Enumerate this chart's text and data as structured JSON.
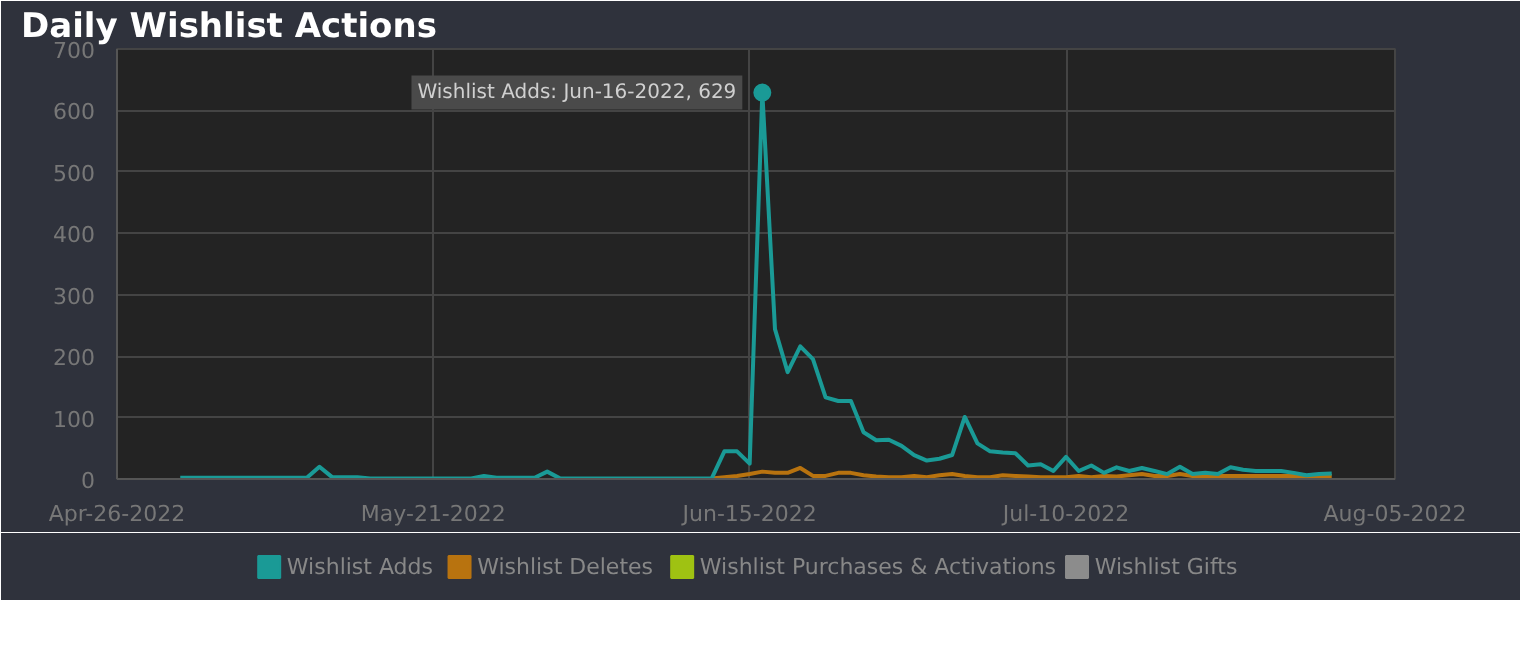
{
  "chart_data": {
    "type": "line",
    "title": "Daily Wishlist Actions",
    "x": [
      "2022-05-01",
      "2022-05-02",
      "2022-05-03",
      "2022-05-04",
      "2022-05-05",
      "2022-05-06",
      "2022-05-07",
      "2022-05-08",
      "2022-05-09",
      "2022-05-10",
      "2022-05-11",
      "2022-05-12",
      "2022-05-13",
      "2022-05-14",
      "2022-05-15",
      "2022-05-16",
      "2022-05-17",
      "2022-05-18",
      "2022-05-19",
      "2022-05-20",
      "2022-05-21",
      "2022-05-22",
      "2022-05-23",
      "2022-05-24",
      "2022-05-25",
      "2022-05-26",
      "2022-05-27",
      "2022-05-28",
      "2022-05-29",
      "2022-05-30",
      "2022-05-31",
      "2022-06-01",
      "2022-06-02",
      "2022-06-03",
      "2022-06-04",
      "2022-06-05",
      "2022-06-06",
      "2022-06-07",
      "2022-06-08",
      "2022-06-09",
      "2022-06-10",
      "2022-06-11",
      "2022-06-12",
      "2022-06-13",
      "2022-06-14",
      "2022-06-15",
      "2022-06-16",
      "2022-06-17",
      "2022-06-18",
      "2022-06-19",
      "2022-06-20",
      "2022-06-21",
      "2022-06-22",
      "2022-06-23",
      "2022-06-24",
      "2022-06-25",
      "2022-06-26",
      "2022-06-27",
      "2022-06-28",
      "2022-06-29",
      "2022-06-30",
      "2022-07-01",
      "2022-07-02",
      "2022-07-03",
      "2022-07-04",
      "2022-07-05",
      "2022-07-06",
      "2022-07-07",
      "2022-07-08",
      "2022-07-09",
      "2022-07-10",
      "2022-07-11",
      "2022-07-12",
      "2022-07-13",
      "2022-07-14",
      "2022-07-15",
      "2022-07-16",
      "2022-07-17",
      "2022-07-18",
      "2022-07-19",
      "2022-07-20",
      "2022-07-21",
      "2022-07-22",
      "2022-07-23",
      "2022-07-24",
      "2022-07-25",
      "2022-07-26",
      "2022-07-27",
      "2022-07-28",
      "2022-07-29",
      "2022-07-30",
      "2022-07-31"
    ],
    "series": [
      {
        "name": "Wishlist Adds",
        "color": "#1a9a96",
        "values": [
          2,
          2,
          2,
          2,
          2,
          2,
          2,
          2,
          2,
          2,
          2,
          20,
          3,
          3,
          3,
          1,
          1,
          1,
          1,
          1,
          1,
          1,
          1,
          1,
          5,
          2,
          2,
          2,
          2,
          12,
          1,
          1,
          1,
          1,
          1,
          1,
          1,
          1,
          1,
          1,
          1,
          1,
          1,
          45,
          45,
          25,
          629,
          244,
          174,
          216,
          195,
          133,
          127,
          127,
          76,
          63,
          64,
          54,
          39,
          30,
          33,
          39,
          101,
          58,
          45,
          43,
          42,
          22,
          24,
          13,
          36,
          13,
          22,
          10,
          19,
          13,
          18,
          13,
          8,
          20,
          8,
          10,
          8,
          19,
          15,
          13,
          13,
          13,
          10,
          6,
          8,
          9
        ]
      },
      {
        "name": "Wishlist Deletes",
        "color": "#b8730f",
        "values": [
          null,
          null,
          null,
          null,
          null,
          null,
          null,
          null,
          null,
          null,
          null,
          null,
          null,
          null,
          null,
          null,
          null,
          null,
          null,
          null,
          null,
          null,
          null,
          null,
          null,
          null,
          null,
          null,
          null,
          null,
          null,
          null,
          null,
          null,
          null,
          null,
          null,
          null,
          null,
          null,
          null,
          null,
          1,
          3,
          5,
          8,
          12,
          10,
          10,
          18,
          5,
          5,
          10,
          10,
          6,
          4,
          3,
          3,
          5,
          3,
          6,
          8,
          5,
          3,
          3,
          6,
          5,
          4,
          3,
          3,
          3,
          5,
          3,
          5,
          4,
          6,
          8,
          5,
          5,
          8,
          5,
          5,
          5,
          5,
          5,
          5,
          5,
          5,
          5,
          5,
          5,
          5
        ]
      },
      {
        "name": "Wishlist Purchases & Activations",
        "color": "#9fc212",
        "values": [
          null,
          null,
          null,
          null,
          null,
          null,
          null,
          null,
          null,
          null,
          null,
          null,
          null,
          null,
          null,
          null,
          null,
          null,
          null,
          null,
          null,
          null,
          null,
          null,
          null,
          null,
          null,
          null,
          null,
          null,
          null,
          null,
          null,
          null,
          null,
          null,
          null,
          null,
          null,
          null,
          null,
          null,
          null,
          null,
          null,
          null,
          null,
          null,
          null,
          null,
          null,
          null,
          null,
          null,
          null,
          null,
          null,
          null,
          null,
          null,
          null,
          null,
          null,
          null,
          null,
          null,
          null,
          null,
          null,
          null,
          null,
          null,
          null,
          null,
          null,
          null,
          null,
          null,
          null,
          null,
          null,
          null,
          null,
          null,
          null,
          null,
          null,
          null,
          null,
          null,
          null,
          null
        ]
      },
      {
        "name": "Wishlist Gifts",
        "color": "#8c8c8c",
        "values": [
          null,
          null,
          null,
          null,
          null,
          null,
          null,
          null,
          null,
          null,
          null,
          null,
          null,
          null,
          null,
          null,
          null,
          null,
          null,
          null,
          null,
          null,
          null,
          null,
          null,
          null,
          null,
          null,
          null,
          null,
          null,
          null,
          null,
          null,
          null,
          null,
          null,
          null,
          null,
          null,
          null,
          null,
          null,
          null,
          null,
          null,
          null,
          null,
          null,
          null,
          null,
          null,
          null,
          null,
          null,
          null,
          null,
          null,
          null,
          null,
          null,
          null,
          null,
          null,
          null,
          null,
          null,
          null,
          null,
          null,
          null,
          null,
          null,
          null,
          null,
          null,
          null,
          null,
          null,
          null,
          null,
          null,
          null,
          null,
          null,
          null,
          null,
          null,
          null,
          null,
          null,
          null
        ]
      }
    ],
    "xlim": [
      "2022-04-26",
      "2022-08-05"
    ],
    "xticks": [
      {
        "value": "2022-04-26",
        "label": "Apr-26-2022"
      },
      {
        "value": "2022-05-21",
        "label": "May-21-2022"
      },
      {
        "value": "2022-06-15",
        "label": "Jun-15-2022"
      },
      {
        "value": "2022-07-10",
        "label": "Jul-10-2022"
      },
      {
        "value": "2022-08-05",
        "label": "Aug-05-2022"
      }
    ],
    "ylim": [
      0,
      700
    ],
    "yticks": [
      0,
      100,
      200,
      300,
      400,
      500,
      600,
      700
    ],
    "grid": true,
    "legend": "bottom",
    "annotations": [
      {
        "text": "Wishlist Adds: Jun-16-2022, 629",
        "x": "2022-06-16",
        "y": 629
      }
    ]
  }
}
